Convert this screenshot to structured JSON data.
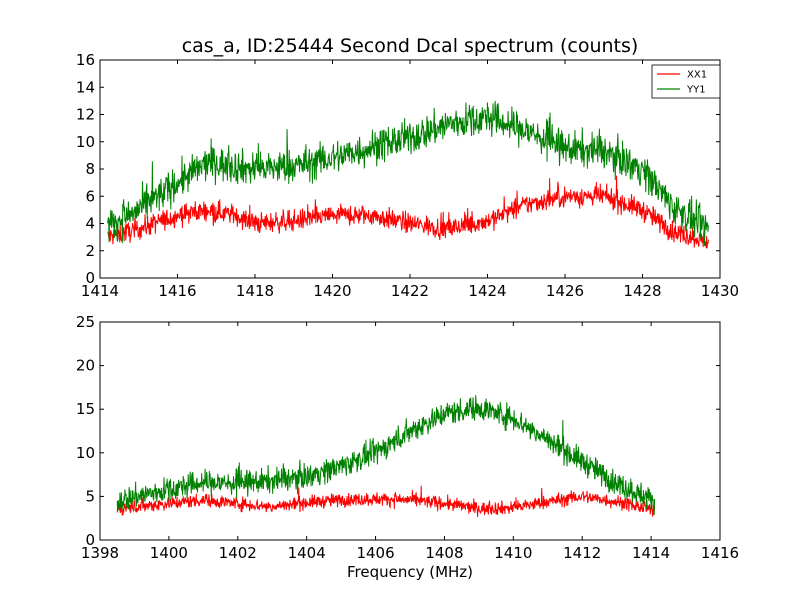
{
  "figure": {
    "title": "cas_a, ID:25444 Second Dcal spectrum (counts)"
  },
  "chart_data": [
    {
      "type": "line",
      "title": "cas_a, ID:25444 Second Dcal spectrum (counts)",
      "xlabel": "",
      "ylabel": "",
      "xlim": [
        1414,
        1430
      ],
      "ylim": [
        0,
        16
      ],
      "x_ticks": [
        "1414",
        "1416",
        "1418",
        "1420",
        "1422",
        "1424",
        "1426",
        "1428",
        "1430"
      ],
      "y_ticks": [
        "0",
        "2",
        "4",
        "6",
        "8",
        "10",
        "12",
        "14",
        "16"
      ],
      "x_tick_values": [
        1414,
        1416,
        1418,
        1420,
        1422,
        1424,
        1426,
        1428,
        1430
      ],
      "y_tick_values": [
        0,
        2,
        4,
        6,
        8,
        10,
        12,
        14,
        16
      ],
      "grid": false,
      "legend": {
        "placement": "top-right"
      },
      "x_range": [
        1414.2,
        1429.7
      ],
      "series": [
        {
          "name": "XX1",
          "color": "#ff0000",
          "noise": 0.55,
          "envelope": [
            [
              1414.2,
              3.0
            ],
            [
              1415.0,
              3.6
            ],
            [
              1416.0,
              4.6
            ],
            [
              1416.8,
              5.0
            ],
            [
              1417.5,
              4.6
            ],
            [
              1418.0,
              4.0
            ],
            [
              1419.0,
              4.2
            ],
            [
              1420.0,
              4.6
            ],
            [
              1421.0,
              4.6
            ],
            [
              1422.0,
              4.0
            ],
            [
              1423.0,
              3.6
            ],
            [
              1424.0,
              4.2
            ],
            [
              1425.0,
              5.4
            ],
            [
              1426.0,
              6.0
            ],
            [
              1427.0,
              6.0
            ],
            [
              1428.0,
              5.0
            ],
            [
              1428.8,
              3.4
            ],
            [
              1429.7,
              2.7
            ]
          ]
        },
        {
          "name": "YY1",
          "color": "#008000",
          "noise": 0.9,
          "envelope": [
            [
              1414.2,
              3.8
            ],
            [
              1415.0,
              5.0
            ],
            [
              1416.0,
              7.0
            ],
            [
              1416.8,
              8.5
            ],
            [
              1417.5,
              8.2
            ],
            [
              1418.0,
              8.0
            ],
            [
              1419.0,
              8.2
            ],
            [
              1420.0,
              8.8
            ],
            [
              1421.0,
              9.6
            ],
            [
              1422.0,
              10.3
            ],
            [
              1423.0,
              11.3
            ],
            [
              1424.0,
              11.8
            ],
            [
              1425.0,
              10.8
            ],
            [
              1426.0,
              9.5
            ],
            [
              1427.0,
              9.3
            ],
            [
              1428.0,
              8.0
            ],
            [
              1428.8,
              5.2
            ],
            [
              1429.7,
              3.5
            ]
          ]
        }
      ]
    },
    {
      "type": "line",
      "title": "",
      "xlabel": "Frequency (MHz)",
      "ylabel": "",
      "xlim": [
        1398,
        1416
      ],
      "ylim": [
        0,
        25
      ],
      "x_ticks": [
        "1398",
        "1400",
        "1402",
        "1404",
        "1406",
        "1408",
        "1410",
        "1412",
        "1414",
        "1416"
      ],
      "y_ticks": [
        "0",
        "5",
        "10",
        "15",
        "20",
        "25"
      ],
      "x_tick_values": [
        1398,
        1400,
        1402,
        1404,
        1406,
        1408,
        1410,
        1412,
        1414,
        1416
      ],
      "y_tick_values": [
        0,
        5,
        10,
        15,
        20,
        25
      ],
      "grid": false,
      "x_range": [
        1398.5,
        1414.1
      ],
      "series": [
        {
          "name": "XX1",
          "color": "#ff0000",
          "noise": 0.55,
          "envelope": [
            [
              1398.5,
              3.6
            ],
            [
              1400.0,
              4.2
            ],
            [
              1401.0,
              4.6
            ],
            [
              1402.0,
              4.2
            ],
            [
              1403.0,
              3.8
            ],
            [
              1404.0,
              4.3
            ],
            [
              1405.0,
              4.6
            ],
            [
              1406.0,
              4.7
            ],
            [
              1407.0,
              4.6
            ],
            [
              1408.0,
              4.2
            ],
            [
              1409.0,
              3.6
            ],
            [
              1410.0,
              3.7
            ],
            [
              1411.0,
              4.4
            ],
            [
              1412.0,
              5.0
            ],
            [
              1413.0,
              4.4
            ],
            [
              1414.1,
              3.4
            ]
          ]
        },
        {
          "name": "YY1",
          "color": "#008000",
          "noise": 1.0,
          "envelope": [
            [
              1398.5,
              4.5
            ],
            [
              1400.0,
              5.8
            ],
            [
              1401.0,
              6.6
            ],
            [
              1402.0,
              6.5
            ],
            [
              1403.0,
              6.8
            ],
            [
              1404.0,
              7.3
            ],
            [
              1405.0,
              8.5
            ],
            [
              1406.0,
              10.0
            ],
            [
              1407.0,
              12.5
            ],
            [
              1408.0,
              14.5
            ],
            [
              1409.0,
              15.2
            ],
            [
              1410.0,
              14.0
            ],
            [
              1411.0,
              11.5
            ],
            [
              1412.0,
              9.0
            ],
            [
              1413.0,
              6.5
            ],
            [
              1414.1,
              4.5
            ]
          ]
        }
      ]
    }
  ]
}
